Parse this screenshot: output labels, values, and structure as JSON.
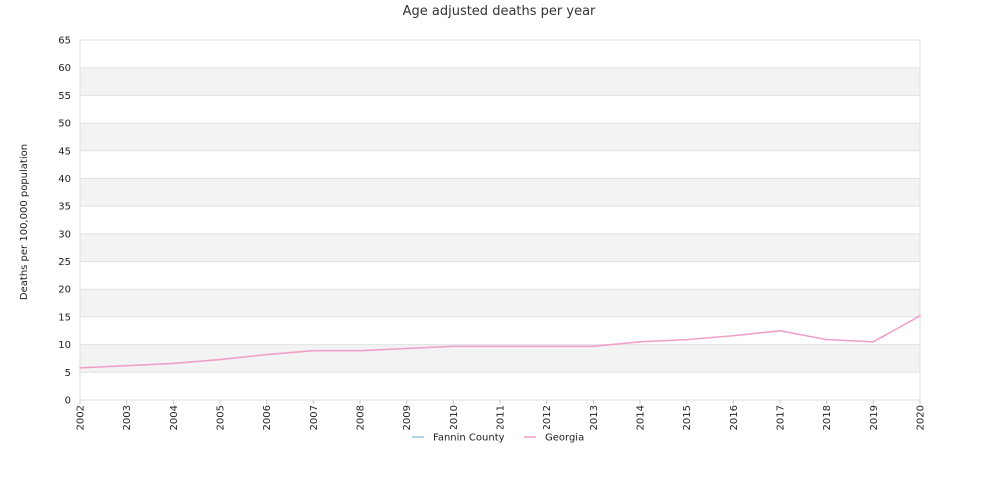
{
  "chart_data": {
    "type": "line",
    "title": "Age adjusted deaths per year",
    "xlabel": "",
    "ylabel": "Deaths per 100,000 population",
    "x": [
      "2002",
      "2003",
      "2004",
      "2005",
      "2006",
      "2007",
      "2008",
      "2009",
      "2010",
      "2011",
      "2012",
      "2013",
      "2014",
      "2015",
      "2016",
      "2017",
      "2018",
      "2019",
      "2020"
    ],
    "ylim": [
      0,
      65
    ],
    "yticks": [
      0,
      5,
      10,
      15,
      20,
      25,
      30,
      35,
      40,
      45,
      50,
      55,
      60,
      65
    ],
    "grid": "alternating horizontal bands",
    "legend_position": "bottom",
    "series": [
      {
        "name": "Fannin County",
        "color": "#9ecae1",
        "values": [
          null,
          null,
          null,
          null,
          null,
          null,
          null,
          null,
          null,
          null,
          null,
          null,
          null,
          null,
          null,
          null,
          null,
          null,
          null
        ]
      },
      {
        "name": "Georgia",
        "color": "#f0a0c8",
        "values": [
          5.8,
          6.2,
          6.6,
          7.3,
          8.2,
          8.9,
          8.9,
          9.3,
          9.7,
          9.7,
          9.7,
          9.7,
          10.5,
          10.9,
          11.6,
          12.5,
          10.9,
          10.5,
          15.2
        ]
      }
    ]
  }
}
